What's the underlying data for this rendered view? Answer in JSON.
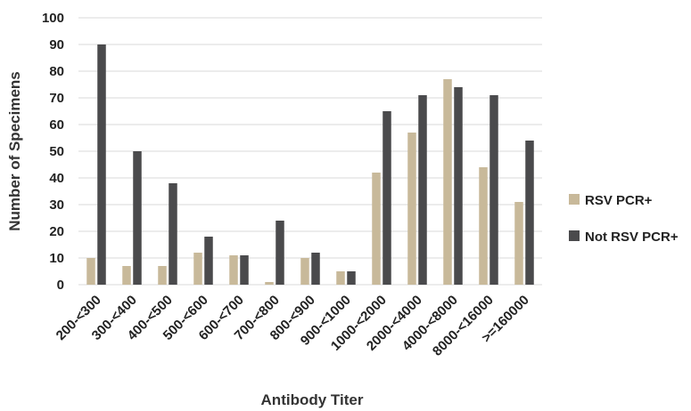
{
  "chart_data": {
    "type": "bar",
    "xlabel": "Antibody Titer",
    "ylabel": "Number of Specimens",
    "ylim": [
      0,
      100
    ],
    "yticks": [
      0,
      10,
      20,
      30,
      40,
      50,
      60,
      70,
      80,
      90,
      100
    ],
    "grid": true,
    "legend_position": "right",
    "categories": [
      "200-<300",
      "300-<400",
      "400-<500",
      "500-<600",
      "600-<700",
      "700-<800",
      "800-<900",
      "900-<1000",
      "1000-<2000",
      "2000-<4000",
      "4000-<8000",
      "8000-<16000",
      ">=160000"
    ],
    "series": [
      {
        "name": "RSV PCR+",
        "color": "#c8b99a",
        "values": [
          10,
          7,
          7,
          12,
          11,
          1,
          10,
          5,
          42,
          57,
          77,
          44,
          31
        ]
      },
      {
        "name": "Not RSV PCR+",
        "color": "#4a4a4c",
        "values": [
          90,
          50,
          38,
          18,
          11,
          24,
          12,
          5,
          65,
          71,
          74,
          71,
          54
        ]
      }
    ]
  }
}
